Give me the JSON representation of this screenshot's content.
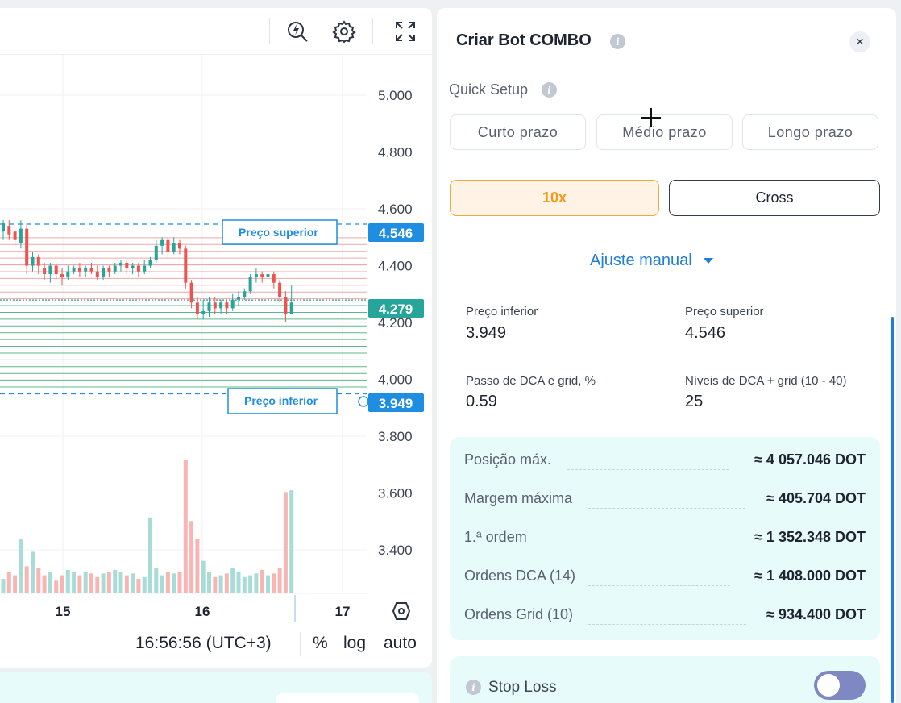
{
  "toolbar": {
    "icons": [
      "lightning-search-icon",
      "gear-icon",
      "fullscreen-icon"
    ]
  },
  "chart": {
    "colors": {
      "up": "#26a69a",
      "down": "#ef5350",
      "up_volume": "#a7dcd7",
      "down_volume": "#f7b5b3",
      "buy_grid": "#5cb88a",
      "sell_grid": "#f2a6a6",
      "marker": "#1f8de0"
    },
    "price_ticks": [
      "5.000",
      "4.800",
      "4.600",
      "4.400",
      "4.200",
      "4.000",
      "3.800",
      "3.600",
      "3.400"
    ],
    "date_ticks": [
      "15",
      "16",
      "17"
    ],
    "upper_label": "Preço superior",
    "lower_label": "Preço inferior",
    "upper_price": "4.546",
    "current_price": "4.279",
    "lower_price": "3.949",
    "time_text": "16:56:56 (UTC+3)",
    "scale_percent": "%",
    "scale_log": "log",
    "scale_auto": "auto"
  },
  "chart_data": {
    "type": "candlestick",
    "x_ticks": [
      "15",
      "16",
      "17"
    ],
    "y_ticks": [
      5.0,
      4.8,
      4.6,
      4.4,
      4.2,
      4.0,
      3.8,
      3.6,
      3.4
    ],
    "ylim": [
      3.33,
      5.1
    ],
    "candles": [
      [
        4.52,
        4.55,
        4.56,
        4.49
      ],
      [
        4.54,
        4.51,
        4.56,
        4.49
      ],
      [
        4.52,
        4.49,
        4.53,
        4.47
      ],
      [
        4.48,
        4.53,
        4.56,
        4.46
      ],
      [
        4.53,
        4.4,
        4.55,
        4.37
      ],
      [
        4.4,
        4.43,
        4.45,
        4.38
      ],
      [
        4.43,
        4.4,
        4.44,
        4.37
      ],
      [
        4.39,
        4.37,
        4.41,
        4.35
      ],
      [
        4.37,
        4.4,
        4.41,
        4.34
      ],
      [
        4.4,
        4.37,
        4.41,
        4.35
      ],
      [
        4.37,
        4.36,
        4.39,
        4.33
      ],
      [
        4.36,
        4.38,
        4.4,
        4.35
      ],
      [
        4.38,
        4.39,
        4.4,
        4.37
      ],
      [
        4.39,
        4.38,
        4.41,
        4.36
      ],
      [
        4.38,
        4.39,
        4.4,
        4.36
      ],
      [
        4.39,
        4.38,
        4.41,
        4.37
      ],
      [
        4.38,
        4.36,
        4.4,
        4.35
      ],
      [
        4.36,
        4.39,
        4.4,
        4.35
      ],
      [
        4.39,
        4.38,
        4.4,
        4.36
      ],
      [
        4.38,
        4.4,
        4.41,
        4.37
      ],
      [
        4.4,
        4.41,
        4.42,
        4.38
      ],
      [
        4.41,
        4.39,
        4.42,
        4.37
      ],
      [
        4.39,
        4.4,
        4.41,
        4.37
      ],
      [
        4.4,
        4.38,
        4.41,
        4.36
      ],
      [
        4.38,
        4.4,
        4.42,
        4.37
      ],
      [
        4.4,
        4.42,
        4.43,
        4.39
      ],
      [
        4.42,
        4.47,
        4.49,
        4.41
      ],
      [
        4.47,
        4.49,
        4.5,
        4.44
      ],
      [
        4.49,
        4.45,
        4.5,
        4.43
      ],
      [
        4.45,
        4.48,
        4.5,
        4.44
      ],
      [
        4.48,
        4.46,
        4.49,
        4.44
      ],
      [
        4.46,
        4.34,
        4.47,
        4.32
      ],
      [
        4.34,
        4.27,
        4.35,
        4.25
      ],
      [
        4.27,
        4.23,
        4.29,
        4.21
      ],
      [
        4.23,
        4.24,
        4.28,
        4.21
      ],
      [
        4.24,
        4.27,
        4.29,
        4.22
      ],
      [
        4.27,
        4.25,
        4.29,
        4.23
      ],
      [
        4.25,
        4.27,
        4.28,
        4.23
      ],
      [
        4.27,
        4.25,
        4.28,
        4.23
      ],
      [
        4.25,
        4.28,
        4.3,
        4.24
      ],
      [
        4.28,
        4.29,
        4.31,
        4.26
      ],
      [
        4.29,
        4.31,
        4.32,
        4.28
      ],
      [
        4.31,
        4.36,
        4.37,
        4.3
      ],
      [
        4.36,
        4.37,
        4.39,
        4.34
      ],
      [
        4.37,
        4.36,
        4.38,
        4.34
      ],
      [
        4.36,
        4.37,
        4.38,
        4.35
      ],
      [
        4.37,
        4.34,
        4.38,
        4.32
      ],
      [
        4.34,
        4.29,
        4.35,
        4.27
      ],
      [
        4.29,
        4.23,
        4.31,
        4.2
      ],
      [
        4.23,
        4.27,
        4.33,
        4.23
      ]
    ],
    "volumes": [
      0.08,
      0.12,
      0.1,
      0.3,
      0.15,
      0.23,
      0.14,
      0.1,
      0.12,
      0.07,
      0.1,
      0.13,
      0.12,
      0.1,
      0.12,
      0.11,
      0.09,
      0.11,
      0.12,
      0.13,
      0.12,
      0.1,
      0.11,
      0.08,
      0.09,
      0.42,
      0.14,
      0.1,
      0.12,
      0.11,
      0.12,
      0.74,
      0.4,
      0.3,
      0.18,
      0.12,
      0.09,
      0.1,
      0.11,
      0.14,
      0.12,
      0.09,
      0.1,
      0.11,
      0.13,
      0.1,
      0.11,
      0.14,
      0.56,
      0.57
    ]
  },
  "form": {
    "title": "Criar Bot COMBO",
    "close": "×",
    "info": "i",
    "quick_setup": "Quick Setup",
    "presets": [
      "Curto prazo",
      "Médio prazo",
      "Longo prazo"
    ],
    "leverage": "10x",
    "margin_mode": "Cross",
    "manual": "Ajuste manual",
    "fields": [
      {
        "label": "Preço inferior",
        "value": "3.949"
      },
      {
        "label": "Preço superior",
        "value": "4.546"
      },
      {
        "label": "Passo de DCA e grid, %",
        "value": "0.59"
      },
      {
        "label": "Níveis de DCA + grid (10 - 40)",
        "value": "25"
      }
    ],
    "summary": [
      {
        "label": "Posição máx.",
        "value": "≈ 4 057.046 DOT"
      },
      {
        "label": "Margem máxima",
        "value": "≈ 405.704 DOT"
      },
      {
        "label": "1.ª ordem",
        "value": "≈ 1 352.348 DOT"
      },
      {
        "label": "Ordens DCA (14)",
        "value": "≈ 1 408.000 DOT"
      },
      {
        "label": "Ordens Grid (10)",
        "value": "≈ 934.400 DOT"
      }
    ],
    "stop_loss": "Stop Loss"
  }
}
